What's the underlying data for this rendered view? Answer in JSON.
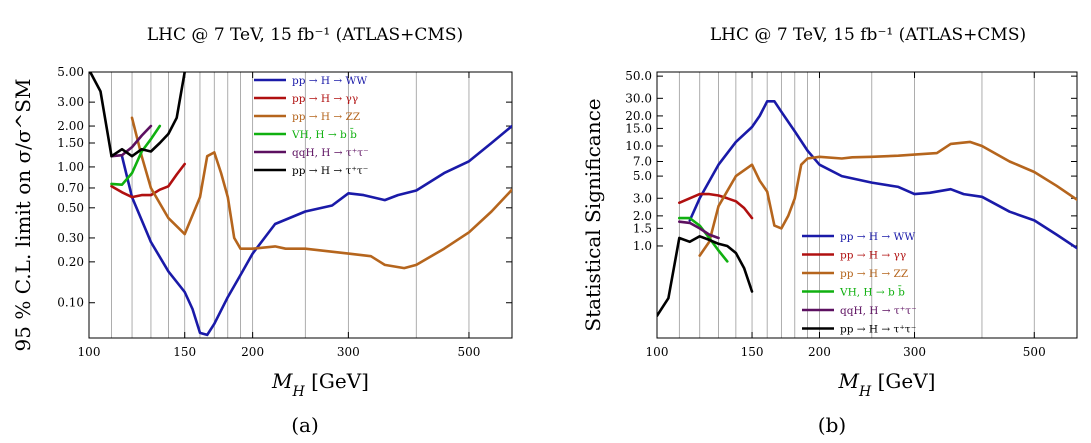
{
  "chart_data": [
    {
      "type": "line",
      "title": "LHC @ 7 TeV, 15 fb⁻¹ (ATLAS+CMS)",
      "xlabel": "M_H [GeV]",
      "ylabel": "95 % C.L. limit on σ/σ^SM",
      "caption": "(a)",
      "xscale": "log",
      "yscale": "log",
      "xlim": [
        100,
        600
      ],
      "ylim": [
        0.055,
        5.0
      ],
      "xticks": [
        100,
        150,
        200,
        300,
        500
      ],
      "xtick_labels": [
        "100",
        "150",
        "200",
        "300",
        "500"
      ],
      "yticks": [
        0.1,
        0.2,
        0.3,
        0.5,
        0.7,
        1.0,
        1.5,
        2.0,
        3.0,
        5.0
      ],
      "ytick_labels": [
        "0.10",
        "0.20",
        "0.30",
        "0.50",
        "0.70",
        "1.00",
        "1.50",
        "2.00",
        "3.00",
        "5.00"
      ],
      "grid": "vertical",
      "legend_position": "top-right",
      "series": [
        {
          "name": "pp → H → WW",
          "color": "#1a1aa8",
          "x": [
            115,
            120,
            130,
            140,
            150,
            155,
            160,
            165,
            170,
            180,
            190,
            200,
            220,
            250,
            280,
            300,
            320,
            350,
            370,
            400,
            450,
            500,
            550,
            600
          ],
          "y": [
            1.2,
            0.6,
            0.28,
            0.17,
            0.12,
            0.09,
            0.06,
            0.058,
            0.07,
            0.11,
            0.16,
            0.23,
            0.38,
            0.47,
            0.52,
            0.64,
            0.62,
            0.57,
            0.62,
            0.67,
            0.9,
            1.1,
            1.5,
            2.0
          ]
        },
        {
          "name": "pp → H → γγ",
          "color": "#b01010",
          "x": [
            110,
            115,
            120,
            125,
            130,
            135,
            140,
            145,
            150
          ],
          "y": [
            0.72,
            0.65,
            0.6,
            0.62,
            0.62,
            0.68,
            0.72,
            0.88,
            1.05
          ]
        },
        {
          "name": "pp → H → ZZ",
          "color": "#b5651d",
          "x": [
            120,
            125,
            130,
            140,
            150,
            160,
            165,
            170,
            175,
            180,
            185,
            190,
            200,
            220,
            230,
            250,
            300,
            330,
            350,
            380,
            400,
            450,
            500,
            550,
            600
          ],
          "y": [
            2.3,
            1.2,
            0.7,
            0.42,
            0.32,
            0.6,
            1.2,
            1.28,
            0.9,
            0.6,
            0.3,
            0.25,
            0.25,
            0.26,
            0.25,
            0.25,
            0.23,
            0.22,
            0.19,
            0.18,
            0.19,
            0.25,
            0.33,
            0.47,
            0.68
          ]
        },
        {
          "name": "VH, H → b b̄",
          "color": "#10b010",
          "x": [
            110,
            115,
            120,
            125,
            130,
            135
          ],
          "y": [
            0.75,
            0.74,
            0.9,
            1.3,
            1.6,
            2.0
          ]
        },
        {
          "name": "qqH, H → τ⁺τ⁻",
          "color": "#5c1060",
          "x": [
            110,
            115,
            120,
            125,
            130
          ],
          "y": [
            1.2,
            1.22,
            1.4,
            1.7,
            2.0
          ]
        },
        {
          "name": "pp → H → τ⁺τ⁻",
          "color": "#000000",
          "x": [
            100,
            105,
            110,
            115,
            120,
            125,
            130,
            135,
            140,
            145,
            150
          ],
          "y": [
            5.2,
            3.6,
            1.2,
            1.35,
            1.2,
            1.35,
            1.3,
            1.5,
            1.75,
            2.3,
            5.0
          ]
        }
      ]
    },
    {
      "type": "line",
      "title": "LHC @ 7 TeV,  15 fb⁻¹ (ATLAS+CMS)",
      "xlabel": "M_H [GeV]",
      "ylabel": "Statistical Significance",
      "caption": "(b)",
      "xscale": "log",
      "yscale": "log",
      "xlim": [
        100,
        600
      ],
      "ylim": [
        0.12,
        55.0
      ],
      "xticks": [
        100,
        150,
        200,
        300,
        500
      ],
      "xtick_labels": [
        "100",
        "150",
        "200",
        "300",
        "500"
      ],
      "yticks": [
        1.0,
        1.5,
        2.0,
        3.0,
        5.0,
        7.0,
        10.0,
        15.0,
        20.0,
        30.0,
        50.0
      ],
      "ytick_labels": [
        "1.0",
        "1.5",
        "2.0",
        "3.0",
        "5.0",
        "7.0",
        "10.0",
        "15.0",
        "20.0",
        "30.0",
        "50.0"
      ],
      "grid": "vertical",
      "legend_position": "bottom-right",
      "series": [
        {
          "name": "pp → H → WW",
          "color": "#1a1aa8",
          "x": [
            115,
            120,
            130,
            140,
            150,
            155,
            160,
            165,
            170,
            180,
            190,
            200,
            220,
            250,
            280,
            300,
            320,
            350,
            370,
            400,
            450,
            500,
            550,
            600
          ],
          "y": [
            1.8,
            3.0,
            6.5,
            11.0,
            15.5,
            20.0,
            28.0,
            28.0,
            22.0,
            14.0,
            9.0,
            6.5,
            5.0,
            4.3,
            3.9,
            3.3,
            3.4,
            3.7,
            3.3,
            3.1,
            2.2,
            1.8,
            1.3,
            0.95
          ]
        },
        {
          "name": "pp → H → γγ",
          "color": "#b01010",
          "x": [
            110,
            115,
            120,
            125,
            130,
            135,
            140,
            145,
            150
          ],
          "y": [
            2.7,
            3.0,
            3.3,
            3.3,
            3.2,
            3.0,
            2.8,
            2.4,
            1.9
          ]
        },
        {
          "name": "pp → H → ZZ",
          "color": "#b5651d",
          "x": [
            120,
            125,
            130,
            140,
            150,
            155,
            160,
            165,
            170,
            175,
            180,
            185,
            190,
            200,
            220,
            230,
            250,
            280,
            300,
            330,
            350,
            380,
            400,
            450,
            500,
            550,
            600
          ],
          "y": [
            0.8,
            1.1,
            2.5,
            5.0,
            6.5,
            4.5,
            3.5,
            1.6,
            1.5,
            2.0,
            3.0,
            6.5,
            7.5,
            7.8,
            7.5,
            7.7,
            7.8,
            8.0,
            8.2,
            8.5,
            10.5,
            11.0,
            10.0,
            7.0,
            5.5,
            4.0,
            2.9
          ]
        },
        {
          "name": "VH, H → b b̄",
          "color": "#10b010",
          "x": [
            110,
            115,
            120,
            125,
            130,
            135
          ],
          "y": [
            1.9,
            1.9,
            1.6,
            1.2,
            0.9,
            0.7
          ]
        },
        {
          "name": "qqH, H → τ⁺τ⁻",
          "color": "#5c1060",
          "x": [
            110,
            115,
            120,
            125,
            130
          ],
          "y": [
            1.75,
            1.7,
            1.5,
            1.3,
            1.2
          ]
        },
        {
          "name": "pp → H → τ⁺τ⁻",
          "color": "#000000",
          "x": [
            100,
            105,
            110,
            115,
            120,
            125,
            130,
            135,
            140,
            145,
            150
          ],
          "y": [
            0.2,
            0.3,
            1.2,
            1.1,
            1.25,
            1.15,
            1.05,
            1.0,
            0.85,
            0.6,
            0.35
          ]
        }
      ]
    }
  ]
}
